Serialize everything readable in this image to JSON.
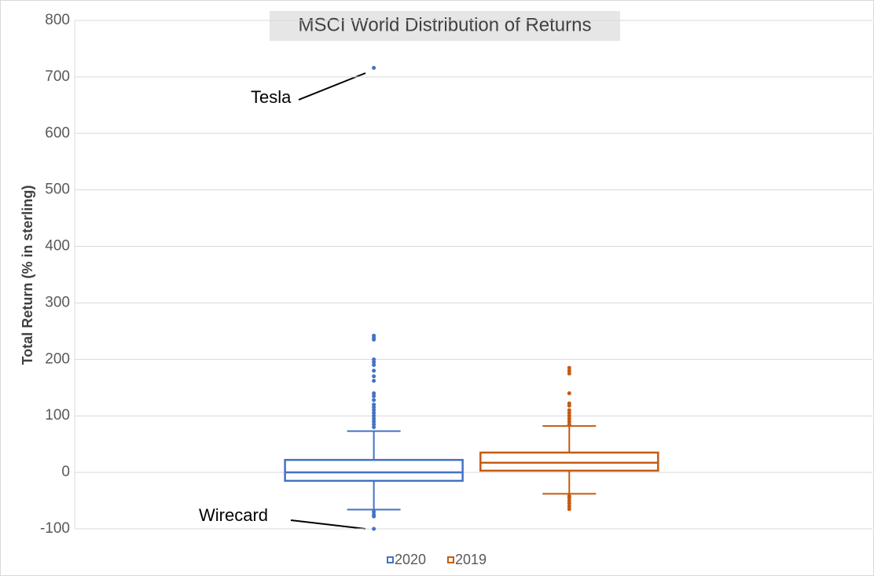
{
  "chart_data": {
    "type": "box",
    "title": "MSCI World Distribution of Returns",
    "y_label": "Total Return (% in sterling)",
    "ylim": [
      -100,
      800
    ],
    "yticks": [
      -100,
      0,
      100,
      200,
      300,
      400,
      500,
      600,
      700,
      800
    ],
    "grid": true,
    "legend": "bottom",
    "series": [
      {
        "name": "2020",
        "color": "#4472c4",
        "whisker_low": -66,
        "q1": -15,
        "median": 0,
        "q3": 22,
        "whisker_high": 73,
        "points": [
          716,
          242,
          238,
          235,
          200,
          195,
          190,
          180,
          170,
          162,
          140,
          135,
          128,
          120,
          115,
          110,
          105,
          100,
          95,
          90,
          85,
          80,
          -70,
          -75,
          -78,
          -100
        ]
      },
      {
        "name": "2019",
        "color": "#c55a11",
        "whisker_low": -38,
        "q1": 3,
        "median": 17,
        "q3": 35,
        "whisker_high": 82,
        "points": [
          185,
          180,
          175,
          140,
          122,
          118,
          110,
          105,
          100,
          95,
          90,
          85,
          -42,
          -45,
          -50,
          -55,
          -60,
          -65
        ]
      }
    ],
    "annotations": [
      "Tesla",
      "Wirecard"
    ]
  }
}
